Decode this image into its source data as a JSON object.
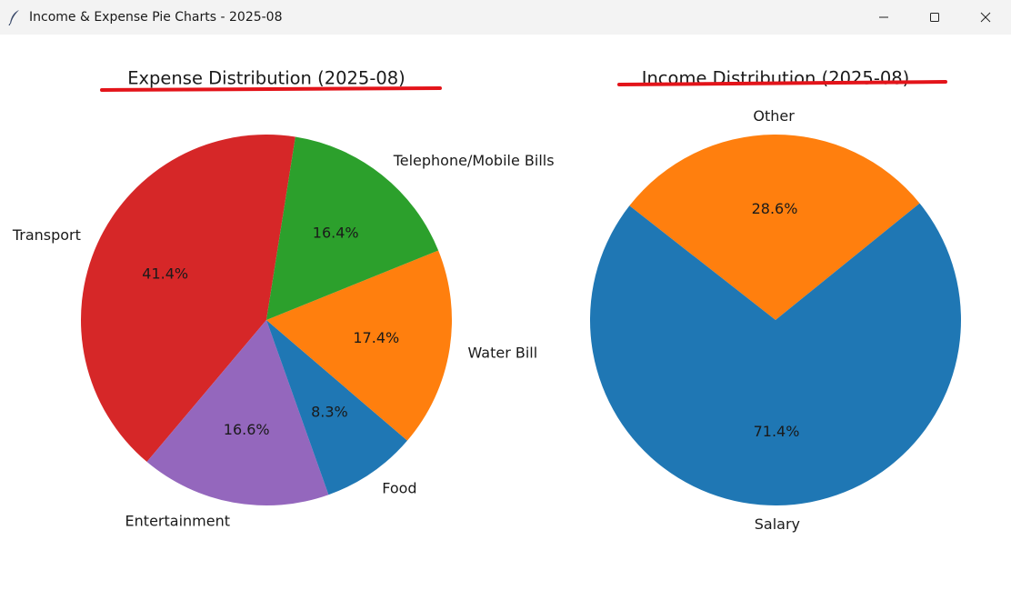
{
  "window": {
    "title": "Income & Expense Pie Charts - 2025-08",
    "app_icon": "feather-icon",
    "controls": [
      "minimize-icon",
      "maximize-icon",
      "close-icon"
    ]
  },
  "annotation_color": "#e3141a",
  "chart_data": [
    {
      "type": "pie",
      "title": "Expense Distribution (2025-08)",
      "start_angle_deg": 81,
      "direction": "counterclockwise",
      "slices": [
        {
          "label": "Transport",
          "value": 41.4,
          "pct_label": "41.4%",
          "color": "#d62728"
        },
        {
          "label": "Entertainment",
          "value": 16.6,
          "pct_label": "16.6%",
          "color": "#9467bd"
        },
        {
          "label": "Food",
          "value": 8.3,
          "pct_label": "8.3%",
          "color": "#1f77b4"
        },
        {
          "label": "Water Bill",
          "value": 17.4,
          "pct_label": "17.4%",
          "color": "#ff7f0e"
        },
        {
          "label": "Telephone/Mobile Bills",
          "value": 16.4,
          "pct_label": "16.4%",
          "color": "#2ca02c"
        }
      ]
    },
    {
      "type": "pie",
      "title": "Income Distribution (2025-08)",
      "start_angle_deg": 39,
      "direction": "counterclockwise",
      "slices": [
        {
          "label": "Other",
          "value": 28.6,
          "pct_label": "28.6%",
          "color": "#ff7f0e"
        },
        {
          "label": "Salary",
          "value": 71.4,
          "pct_label": "71.4%",
          "color": "#1f77b4"
        }
      ]
    }
  ]
}
